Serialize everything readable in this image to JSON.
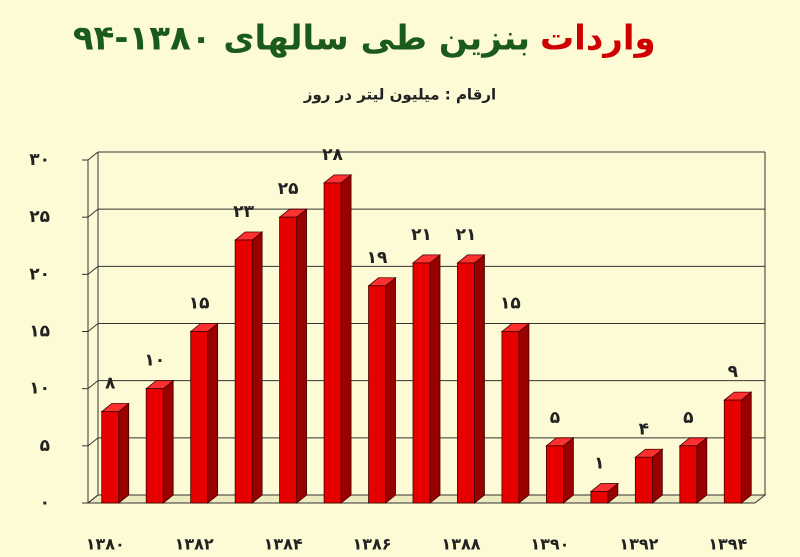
{
  "chart_data": {
    "type": "bar3d",
    "title_prefix": "واردات",
    "title": "بنزین طی سالهای ۱۳۸۰-۹۴",
    "subtitle": "ارقام : میلیون لیتر در روز",
    "categories": [
      "۱۳۸۰",
      null,
      "۱۳۸۲",
      null,
      "۱۳۸۴",
      null,
      "۱۳۸۶",
      null,
      "۱۳۸۸",
      null,
      "۱۳۹۰",
      null,
      "۱۳۹۲",
      null,
      "۱۳۹۴"
    ],
    "values": [
      8,
      10,
      15,
      23,
      25,
      28,
      19,
      21,
      21,
      15,
      5,
      1,
      4,
      5,
      9
    ],
    "value_labels": [
      "۸",
      "۱۰",
      "۱۵",
      "۲۳",
      "۲۵",
      "۲۸",
      "۱۹",
      "۲۱",
      "۲۱",
      "۱۵",
      "۵",
      "۱",
      "۴",
      "۵",
      "۹"
    ],
    "color": "#e60000",
    "ylim": [
      0,
      30
    ],
    "yticks": [
      {
        "value": 0,
        "label": "۰"
      },
      {
        "value": 5,
        "label": "۵"
      },
      {
        "value": 10,
        "label": "۱۰"
      },
      {
        "value": 15,
        "label": "۱۵"
      },
      {
        "value": 20,
        "label": "۲۰"
      },
      {
        "value": 25,
        "label": "۲۵"
      },
      {
        "value": 30,
        "label": "۳۰"
      }
    ],
    "grid": true
  }
}
